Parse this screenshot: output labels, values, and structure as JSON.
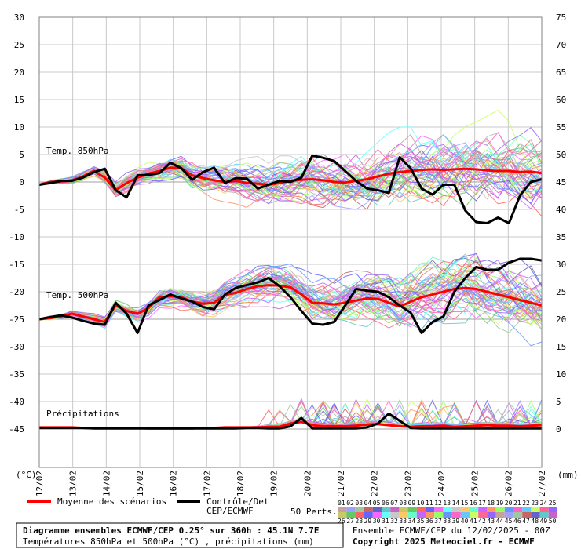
{
  "chart_data": {
    "type": "line",
    "x_tick_labels": [
      "12/02",
      "13/02",
      "14/02",
      "15/02",
      "16/02",
      "17/02",
      "18/02",
      "19/02",
      "20/02",
      "21/02",
      "22/02",
      "23/02",
      "24/02",
      "25/02",
      "26/02",
      "27/02"
    ],
    "left_axis": {
      "unit": "(°C)",
      "ticks": [
        30,
        25,
        20,
        15,
        10,
        5,
        0,
        -5,
        -10,
        -15,
        -20,
        -25,
        -30,
        -35,
        -40,
        -45
      ],
      "range": [
        -45,
        30
      ]
    },
    "right_axis": {
      "unit": "(mm)",
      "ticks": [
        75,
        70,
        65,
        60,
        55,
        50,
        45,
        40,
        35,
        30,
        25,
        20,
        15,
        10,
        5,
        0
      ],
      "range": [
        0,
        75
      ]
    },
    "grid": true,
    "panel_labels": {
      "t850": "Temp. 850hPa",
      "t500": "Temp. 500hPa",
      "precip": "Précipitations"
    },
    "series": [
      {
        "name": "Moyenne des scénarios",
        "color": "#ff0000",
        "panel": "t850",
        "values": [
          -0.5,
          0,
          0.1,
          0.3,
          1,
          2,
          0.8,
          -1.5,
          -0.2,
          0.8,
          1.5,
          2,
          2.6,
          2.5,
          1.2,
          0.7,
          0.3,
          0,
          0.2,
          -0.2,
          -0.3,
          -0.5,
          -0.2,
          0.2,
          0.4,
          0.5,
          0.3,
          0,
          -0.1,
          0.2,
          0.5,
          1,
          1.5,
          1.8,
          2,
          2.2,
          2.3,
          2.2,
          2.3,
          2.4,
          2.3,
          2.1,
          2,
          2,
          1.8,
          1.9,
          1.6
        ]
      },
      {
        "name": "Contrôle/Det CEP/ECMWF",
        "color": "#000000",
        "panel": "t850",
        "values": [
          -0.5,
          -0.2,
          0.2,
          0.2,
          0.8,
          1.8,
          2.4,
          -1.5,
          -2.8,
          1.2,
          1.3,
          1.6,
          3.5,
          2.5,
          0.4,
          1.8,
          2.6,
          -0.2,
          0.7,
          0.6,
          -1.2,
          -0.5,
          0.2,
          0,
          0.8,
          4.8,
          4.4,
          3.8,
          2,
          0.2,
          -1.2,
          -1.5,
          -2,
          4.5,
          2.5,
          -1.2,
          -2.3,
          -0.5,
          -0.5,
          -5.2,
          -7.3,
          -7.5,
          -6.5,
          -7.5,
          -2.5,
          0,
          0.5
        ]
      },
      {
        "name": "Moyenne des scénarios",
        "color": "#ff0000",
        "panel": "t500",
        "values": [
          -25,
          -24.8,
          -24.5,
          -24,
          -24.5,
          -25,
          -25.5,
          -22.5,
          -23.5,
          -24,
          -23,
          -21,
          -20.8,
          -21,
          -21.8,
          -22.2,
          -22,
          -20.6,
          -20.2,
          -19.5,
          -19,
          -18.8,
          -18.9,
          -19.2,
          -20.5,
          -22,
          -22.1,
          -22.3,
          -22,
          -21.6,
          -21.2,
          -21.3,
          -22,
          -22.7,
          -21.8,
          -21,
          -20.5,
          -20,
          -19.5,
          -19.3,
          -19.5,
          -20,
          -20.5,
          -21,
          -21.5,
          -22,
          -22.5
        ]
      },
      {
        "name": "Contrôle/Det CEP/ECMWF",
        "color": "#000000",
        "panel": "t500",
        "values": [
          -25,
          -24.6,
          -24.3,
          -24.7,
          -25.3,
          -25.8,
          -26,
          -22,
          -24,
          -27.5,
          -22.5,
          -21.5,
          -20.5,
          -21.2,
          -21.8,
          -22.8,
          -23.2,
          -20.5,
          -19.3,
          -18.8,
          -18.3,
          -17.5,
          -19,
          -21,
          -23.5,
          -25.8,
          -26,
          -25.5,
          -22.5,
          -19.5,
          -19.8,
          -20,
          -21,
          -22.5,
          -23.8,
          -27.5,
          -25.5,
          -24.5,
          -20,
          -17.5,
          -15.5,
          -16,
          -16,
          -14.7,
          -14,
          -14,
          -14.3
        ]
      },
      {
        "name": "Moyenne des scénarios",
        "color": "#ff0000",
        "panel": "precip",
        "values": [
          0.3,
          0.3,
          0.3,
          0.3,
          0.2,
          0.2,
          0.2,
          0.2,
          0.2,
          0.2,
          0.1,
          0.1,
          0.1,
          0.1,
          0.1,
          0.2,
          0.2,
          0.3,
          0.3,
          0.3,
          0.3,
          0.4,
          0.4,
          1,
          1.3,
          0.7,
          0.5,
          0.5,
          0.5,
          0.6,
          0.8,
          0.9,
          0.7,
          0.5,
          0.4,
          0.5,
          0.5,
          0.6,
          0.4,
          0.5,
          0.6,
          0.7,
          0.6,
          0.6,
          0.5,
          0.6,
          0.7
        ]
      },
      {
        "name": "Contrôle/Det CEP/ECMWF",
        "color": "#000000",
        "panel": "precip",
        "values": [
          0.2,
          0.2,
          0.2,
          0.2,
          0.2,
          0.1,
          0.1,
          0.1,
          0.1,
          0.1,
          0.1,
          0.1,
          0.1,
          0.1,
          0.1,
          0.1,
          0.1,
          0.1,
          0.1,
          0.2,
          0.2,
          0.1,
          0.1,
          0.5,
          2,
          0.1,
          0.1,
          0.1,
          0.1,
          0.1,
          0.3,
          1,
          2.8,
          1.5,
          0.2,
          0.1,
          0.1,
          0.1,
          0.1,
          0.1,
          0.1,
          0.1,
          0.1,
          0.1,
          0.1,
          0.1,
          0.1
        ]
      }
    ],
    "members_count": 50,
    "legend": {
      "mean_label": "Moyenne des scénarios",
      "control_label": "Contrôle/Det",
      "control_label2": "CEP/ECMWF",
      "perts_label": "50 Perts.",
      "member_numbers_row1": [
        "01",
        "02",
        "03",
        "04",
        "05",
        "06",
        "07",
        "08",
        "09",
        "10",
        "11",
        "12",
        "13",
        "14",
        "15",
        "16",
        "17",
        "18",
        "19",
        "20",
        "21",
        "22",
        "23",
        "24",
        "25"
      ],
      "member_numbers_row2": [
        "26",
        "27",
        "28",
        "29",
        "30",
        "31",
        "32",
        "33",
        "34",
        "35",
        "36",
        "37",
        "38",
        "39",
        "40",
        "41",
        "42",
        "43",
        "44",
        "45",
        "46",
        "47",
        "48",
        "49",
        "50"
      ],
      "member_colors": [
        "#c8a0a0",
        "#a0a0ff",
        "#a0c8a0",
        "#c86464",
        "#6464c8",
        "#64c8c8",
        "#c864c8",
        "#c8c864",
        "#64c864",
        "#ff6464",
        "#6464ff",
        "#ff64ff",
        "#64ffff",
        "#c8c8c8",
        "#ffc864",
        "#64ffc8",
        "#c864ff",
        "#ff9664",
        "#96ff64",
        "#6496ff",
        "#ff64c8",
        "#64c8ff",
        "#c8ff64",
        "#ff6496",
        "#9664ff"
      ]
    }
  },
  "footer": {
    "title": "Diagramme ensembles ECMWF/CEP 0.25° sur 360h : 45.1N 7.7E",
    "subtitle": "Températures 850hPa et 500hPa (°C) , précipitations (mm)",
    "run_info": "Ensemble ECMWF/CEP du 12/02/2025 - 00Z",
    "copyright": "Copyright 2025 Meteociel.fr - ECMWF"
  }
}
